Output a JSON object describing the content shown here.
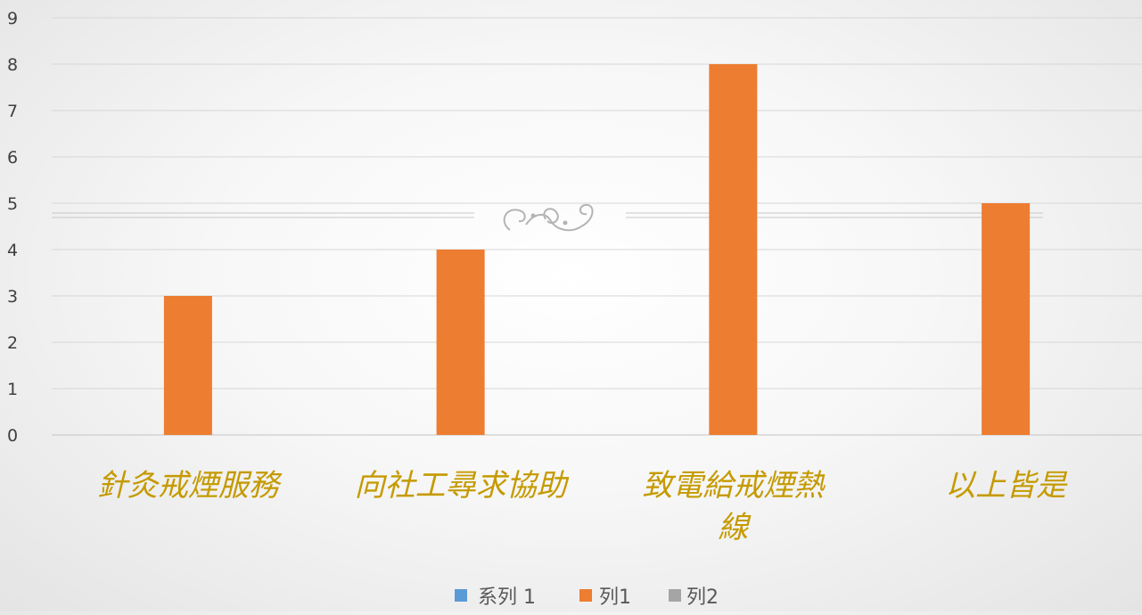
{
  "chart_data": {
    "type": "bar",
    "categories": [
      "針灸戒煙服務",
      "向社工尋求協助",
      "致電給戒煙熱線",
      "以上皆是"
    ],
    "series": [
      {
        "name": "系列 1",
        "values": [
          null,
          null,
          null,
          null
        ],
        "color": "#5B9BD5"
      },
      {
        "name": "列1",
        "values": [
          3,
          4,
          8,
          5
        ],
        "color": "#ED7D31"
      },
      {
        "name": "列2",
        "values": [
          null,
          null,
          null,
          null
        ],
        "color": "#A5A5A5"
      }
    ],
    "y_ticks": [
      "0",
      "1",
      "2",
      "3",
      "4",
      "5",
      "6",
      "7",
      "8",
      "9"
    ],
    "ylim": [
      0,
      9
    ],
    "grid": true,
    "legend": "bottom",
    "title": "",
    "xlabel": "",
    "ylabel": "",
    "category_label_color": "#C59A00",
    "ornament_icon": "flourish-divider-icon"
  }
}
